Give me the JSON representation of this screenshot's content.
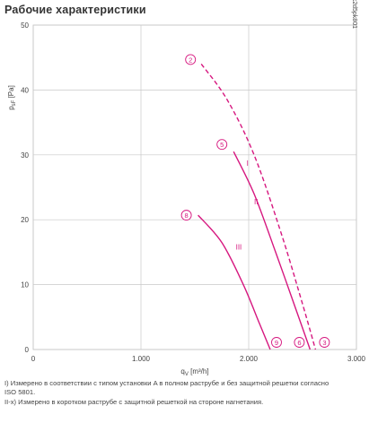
{
  "title": "Рабочие характеристики",
  "chart_data": {
    "type": "line",
    "xlabel_main": "q",
    "xlabel_sub": "V",
    "xlabel_unit": "[m³/h]",
    "ylabel_main": "p",
    "ylabel_sub": "sF",
    "ylabel_unit": "[Pa]",
    "xlim": [
      0,
      3000
    ],
    "ylim": [
      0,
      50
    ],
    "x_ticks": [
      0,
      1000,
      2000,
      3000
    ],
    "x_tick_labels": [
      "0",
      "1.000",
      "2.000",
      "3.000"
    ],
    "y_ticks": [
      0,
      10,
      20,
      30,
      40,
      50
    ],
    "y_tick_labels": [
      "0",
      "10",
      "20",
      "30",
      "40",
      "50"
    ],
    "grid": true,
    "side_code": "fb040sdk2d5pk801",
    "series": [
      {
        "name": "I",
        "style": "dashed",
        "start_marker": "2",
        "end_marker": "3",
        "x": [
          1560,
          1800,
          2050,
          2300,
          2500,
          2620
        ],
        "y": [
          44,
          38.5,
          30,
          18,
          7,
          0
        ]
      },
      {
        "name": "II",
        "style": "solid",
        "start_marker": "5",
        "end_marker": "6",
        "x": [
          1860,
          2050,
          2250,
          2400,
          2570
        ],
        "y": [
          30.5,
          24,
          15,
          8,
          0
        ]
      },
      {
        "name": "III",
        "style": "solid",
        "start_marker": "8",
        "end_marker": "9",
        "x": [
          1530,
          1750,
          1950,
          2100,
          2200
        ],
        "y": [
          20.7,
          16.5,
          10,
          4,
          0
        ]
      }
    ],
    "curve_color": "#d6177f"
  },
  "notes": [
    "I) Измерено в соответствии с типом установки A в полном раструбе и без защитной решетки согласно",
    "ISO 5801.",
    "II-x) Измерено в коротком раструбе с защитной решеткой на стороне нагнетания."
  ]
}
